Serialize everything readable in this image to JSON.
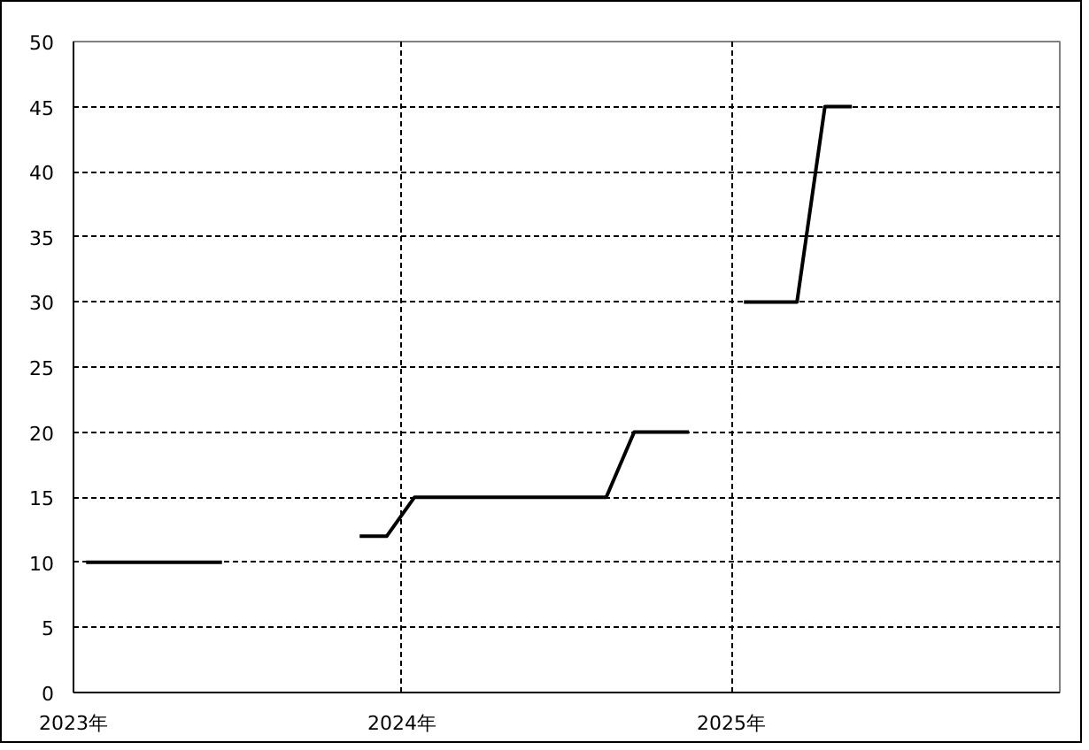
{
  "chart_data": {
    "type": "line",
    "x": [
      "2023-01-15",
      "2023-02-15",
      "2023-03-15",
      "2023-04-15",
      "2023-05-15",
      "2023-06-15",
      "2023-07-15",
      "2023-08-15",
      "2023-09-15",
      "2023-10-15",
      "2023-11-15",
      "2023-12-15",
      "2024-01-15",
      "2024-02-15",
      "2024-03-15",
      "2024-04-15",
      "2024-05-15",
      "2024-06-15",
      "2024-07-15",
      "2024-08-15",
      "2024-09-15",
      "2024-10-15",
      "2024-11-15",
      "2024-12-15",
      "2025-01-15",
      "2025-02-15",
      "2025-03-15",
      "2025-04-15",
      "2025-05-15"
    ],
    "series": [
      {
        "color": "#000000",
        "values": [
          10,
          10,
          10,
          10,
          10,
          10,
          null,
          null,
          null,
          null,
          12,
          12,
          15,
          15,
          15,
          15,
          15,
          15,
          15,
          15,
          20,
          20,
          20,
          null,
          30,
          30,
          30,
          45,
          45
        ]
      }
    ],
    "xlim": [
      "2023-01-01",
      "2026-01-01"
    ],
    "xticks": [
      {
        "value": "2023-01-01",
        "label": "2023年"
      },
      {
        "value": "2024-01-01",
        "label": "2024年"
      },
      {
        "value": "2025-01-01",
        "label": "2025年"
      }
    ],
    "ylim": [
      0,
      50
    ],
    "yticks": [
      0,
      5,
      10,
      15,
      20,
      25,
      30,
      35,
      40,
      45,
      50
    ],
    "grid": true,
    "marker": "none",
    "line_style": "solid"
  }
}
